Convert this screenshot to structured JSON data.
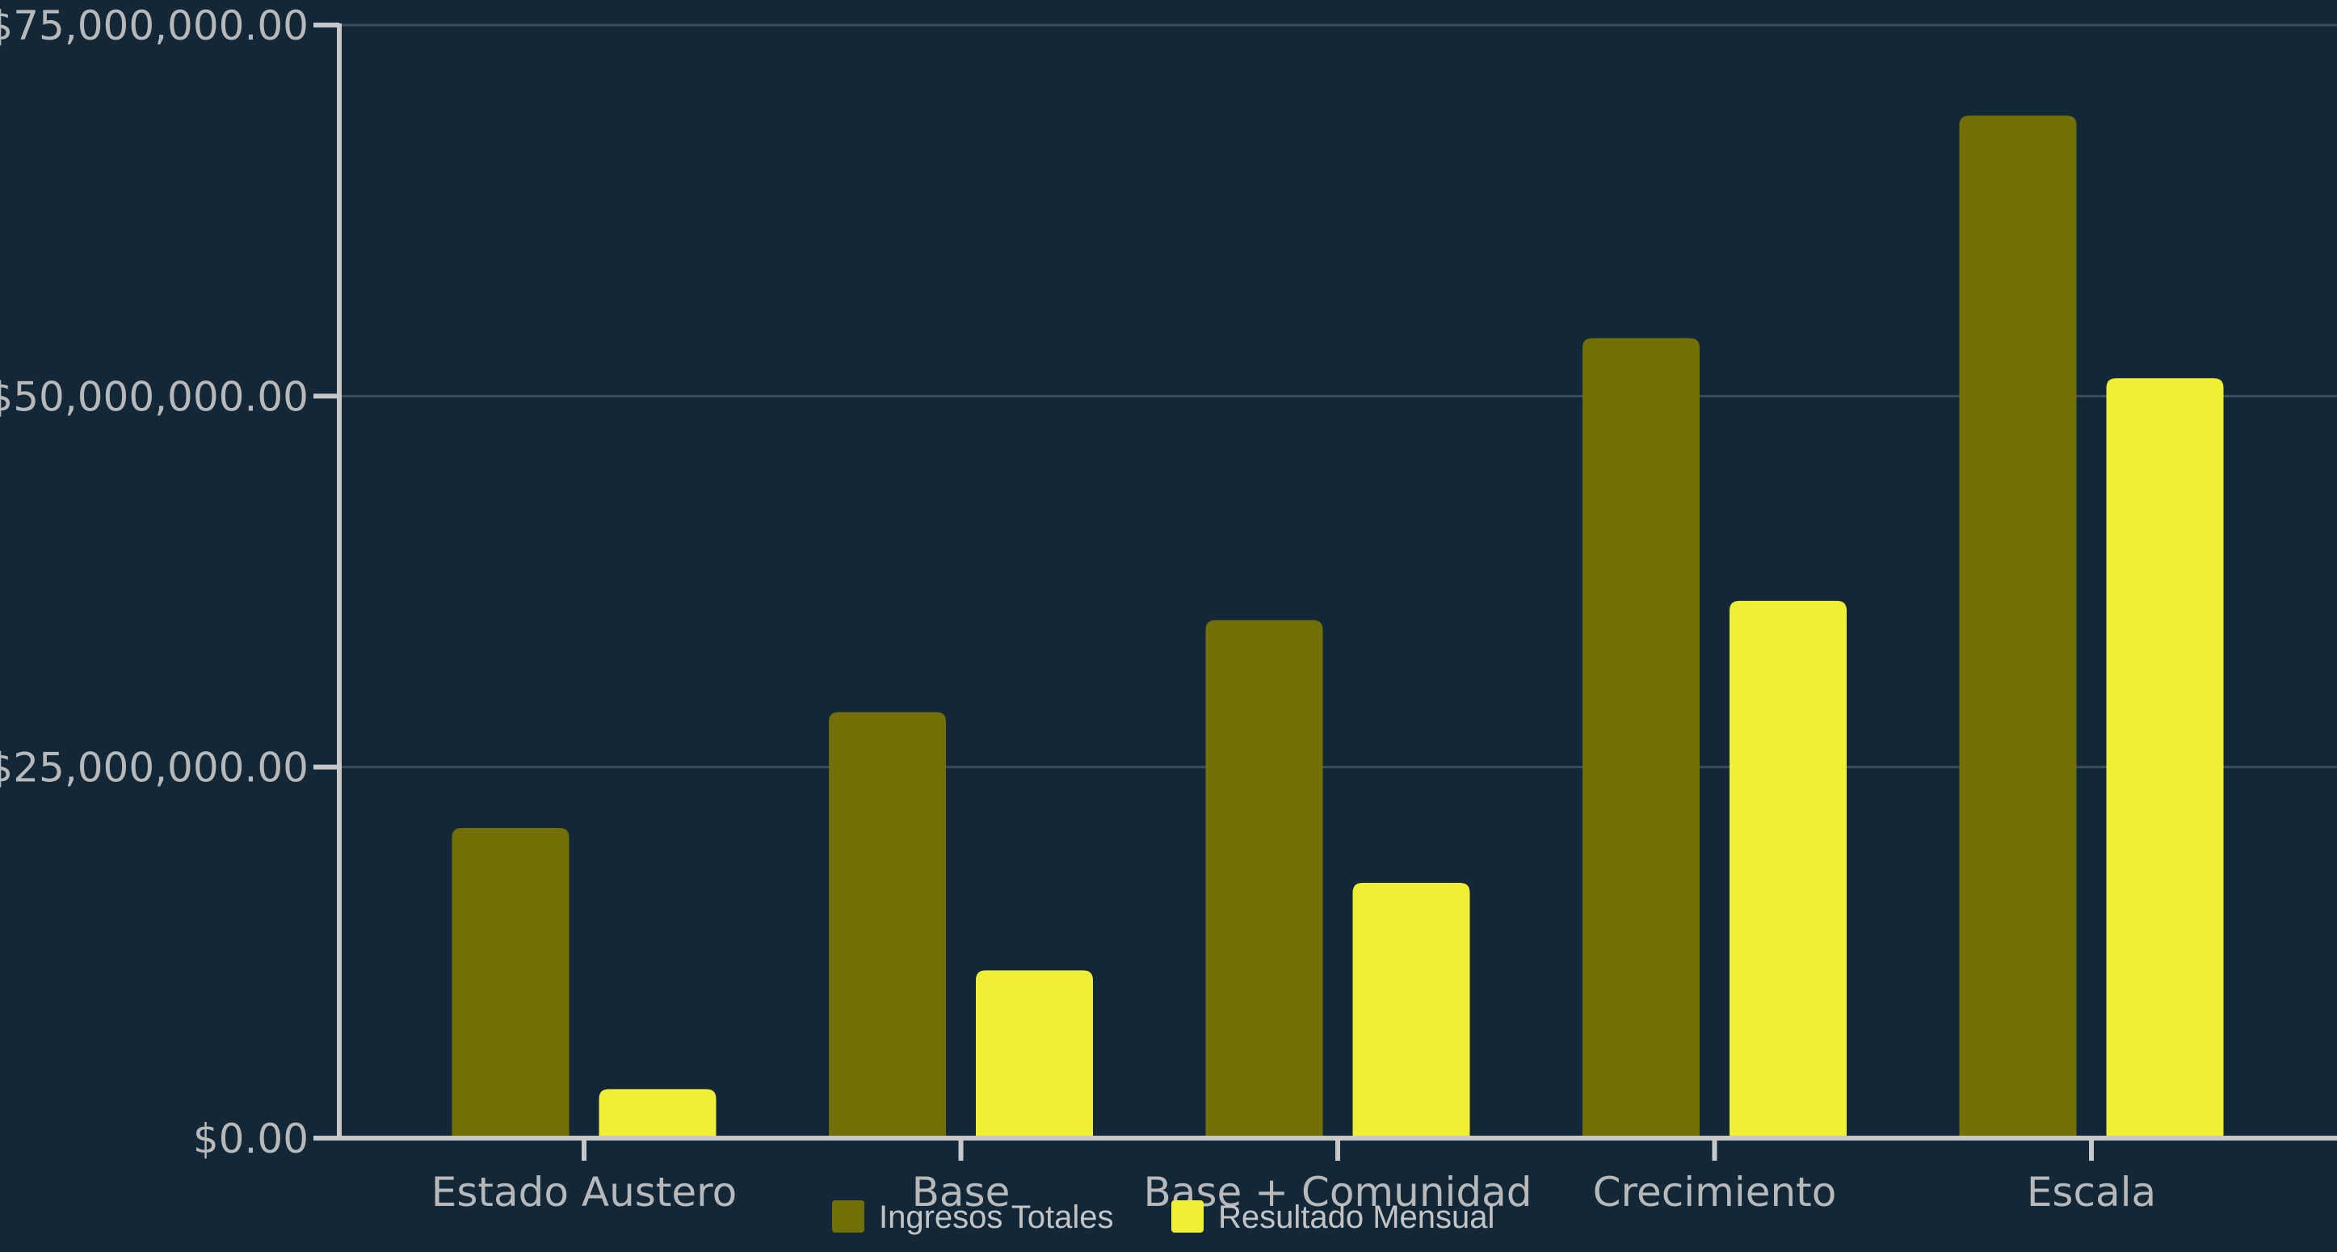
{
  "chart_data": {
    "type": "bar",
    "title": "",
    "xlabel": "",
    "ylabel": "",
    "categories": [
      "Estado Austero",
      "Base",
      "Base + Comunidad",
      "Crecimiento",
      "Escala"
    ],
    "series": [
      {
        "name": "Ingresos Totales",
        "color": "#727004",
        "values": [
          20900000,
          28700000,
          34900000,
          53900000,
          68900000
        ]
      },
      {
        "name": "Resultado Mensual",
        "color": "#efef37",
        "values": [
          3300000,
          11300000,
          17200000,
          36200000,
          51200000
        ]
      }
    ],
    "ylim": [
      0,
      75000000
    ],
    "yticks": [
      0,
      25000000,
      50000000,
      75000000
    ],
    "ytick_labels": [
      "$0.00",
      "$25,000,000.00",
      "$50,000,000.00",
      "$75,000,000.00"
    ],
    "grid": true,
    "legend_position": "bottom-center",
    "colors": {
      "background": "#122737",
      "axis": "#c8c8c8",
      "grid": "#3a4d5b",
      "tick_text": "#b8b8b8"
    }
  }
}
